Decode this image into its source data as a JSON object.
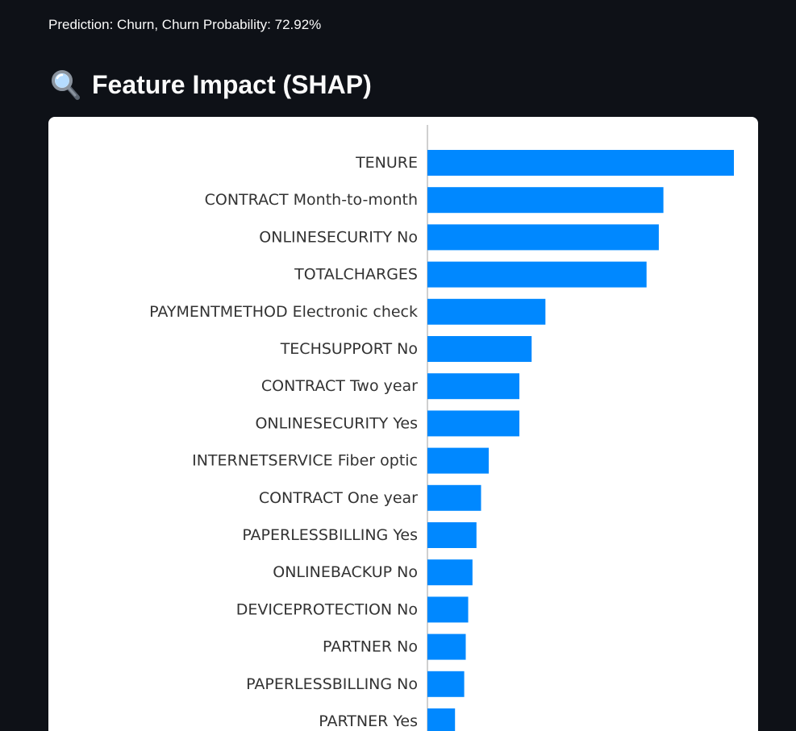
{
  "prediction_text": "Prediction: Churn, Churn Probability: 72.92%",
  "section": {
    "icon": "magnifying-glass-icon",
    "title": "Feature Impact (SHAP)"
  },
  "colors": {
    "background": "#0e1117",
    "bar": "#0088ff",
    "card": "#ffffff",
    "axis": "#b0b0b0"
  },
  "chart_data": {
    "type": "bar",
    "orientation": "horizontal",
    "categories": [
      "TENURE",
      "CONTRACT Month-to-month",
      "ONLINESECURITY No",
      "TOTALCHARGES",
      "PAYMENTMETHOD Electronic check",
      "TECHSUPPORT No",
      "CONTRACT Two year",
      "ONLINESECURITY Yes",
      "INTERNETSERVICE Fiber optic",
      "CONTRACT One year",
      "PAPERLESSBILLING Yes",
      "ONLINEBACKUP No",
      "DEVICEPROTECTION No",
      "PARTNER No",
      "PAPERLESSBILLING No",
      "PARTNER Yes"
    ],
    "values": [
      1.0,
      0.77,
      0.755,
      0.715,
      0.385,
      0.34,
      0.3,
      0.3,
      0.2,
      0.175,
      0.16,
      0.147,
      0.133,
      0.125,
      0.12,
      0.09
    ],
    "value_scale": "relative to largest bar",
    "title": "",
    "xlabel": "",
    "ylabel": "",
    "sorted": "descending",
    "grid": false,
    "legend": "none"
  }
}
